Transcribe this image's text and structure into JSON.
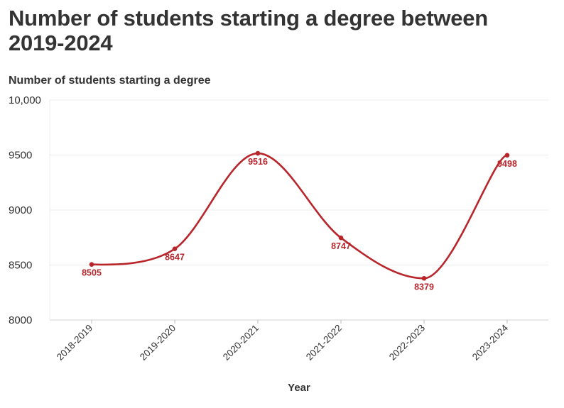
{
  "title": "Number of students starting a degree between 2019-2024",
  "chart_data": {
    "type": "line",
    "title": "Number of students starting a degree between 2019-2024",
    "ylabel": "Number of students starting a degree",
    "xlabel": "Year",
    "categories": [
      "2018-2019",
      "2019-2020",
      "2020-2021",
      "2021-2022",
      "2022-2023",
      "2023-2024"
    ],
    "values": [
      8505,
      8647,
      9516,
      8747,
      8379,
      9498
    ],
    "data_labels": [
      "8505",
      "8647",
      "9516",
      "8747",
      "8379",
      "9498"
    ],
    "ylim": [
      8000,
      10000
    ],
    "yticks": [
      8000,
      8500,
      9000,
      9500,
      10000
    ],
    "ytick_labels": [
      "8000",
      "8500",
      "9000",
      "9500",
      "10,000"
    ],
    "grid": true,
    "line_color": "#b8262b",
    "curve": "smooth"
  }
}
